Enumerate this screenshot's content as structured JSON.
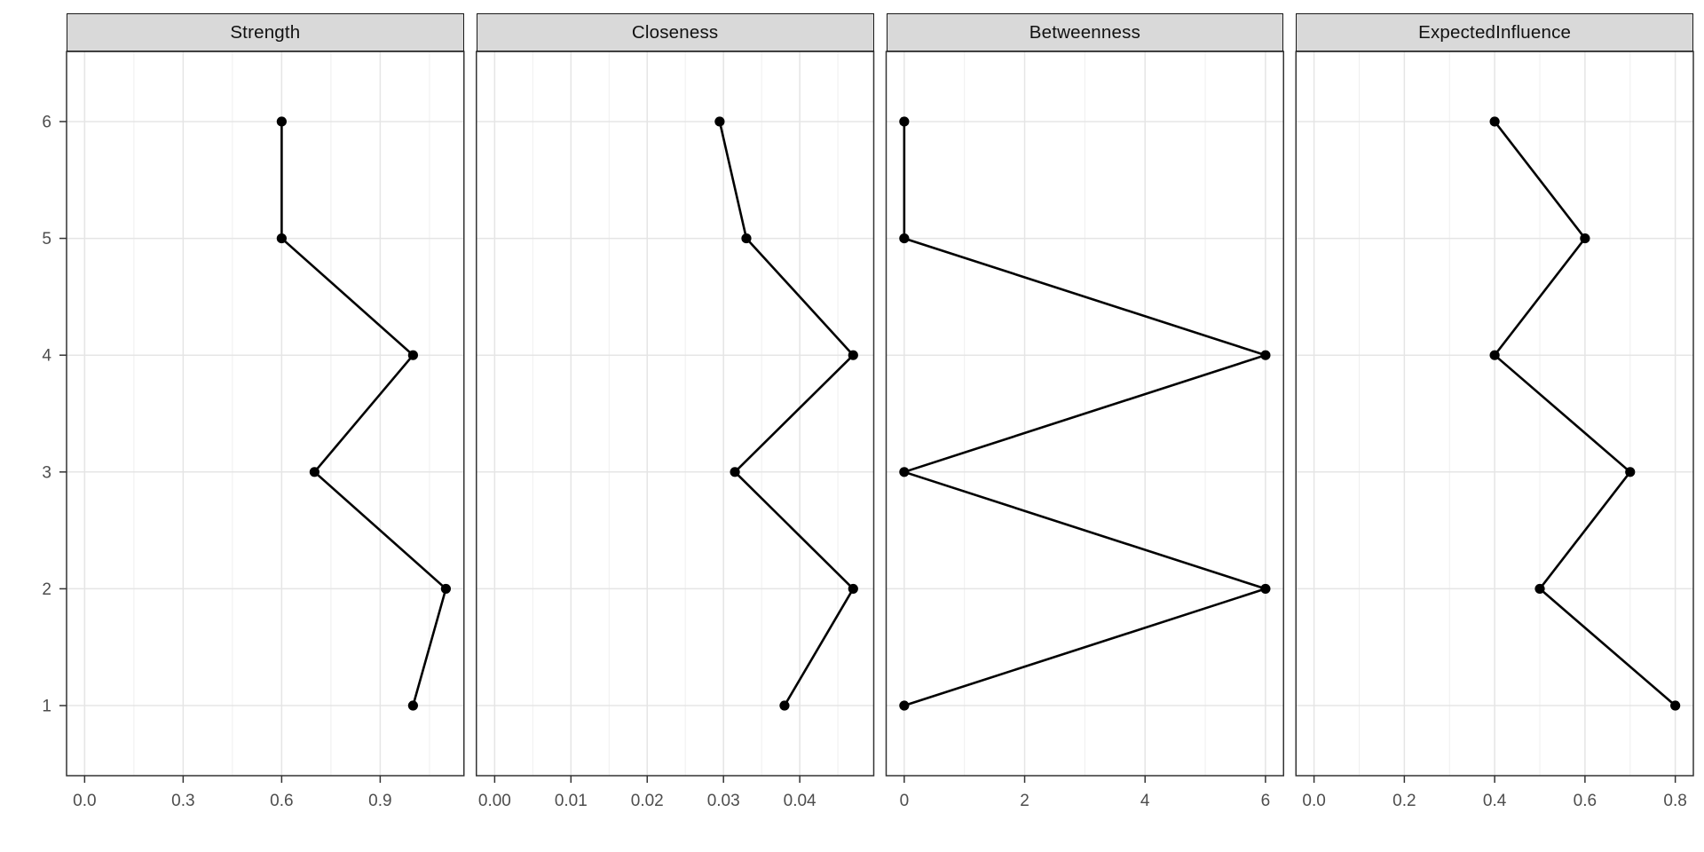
{
  "figure": {
    "background": "#ffffff",
    "colors": {
      "strip_fill": "#d9d9d9",
      "strip_border": "#1a1a1a",
      "strip_text": "#111111",
      "panel_border": "#333333",
      "grid_major": "#e5e5e5",
      "grid_minor": "#efefef",
      "axis_tick": "#333333",
      "tick_label": "#4d4d4d",
      "line": "#000000",
      "point": "#000000"
    }
  },
  "chart_data": {
    "type": "line",
    "subtype": "faceted dot-line centrality plot, one panel per measure, nodes on y-axis",
    "title": "",
    "xlabel": "",
    "ylabel": "",
    "legend": "none",
    "grid": "vertical major+minor gridlines; horizontal major gridline at each node level",
    "nodes": [
      1,
      2,
      3,
      4,
      5,
      6
    ],
    "y_axis": {
      "domain": [
        0.4,
        6.6
      ],
      "ticks": [
        {
          "value": 6,
          "label": "6"
        },
        {
          "value": 5,
          "label": "5"
        },
        {
          "value": 4,
          "label": "4"
        },
        {
          "value": 3,
          "label": "3"
        },
        {
          "value": 2,
          "label": "2"
        },
        {
          "value": 1,
          "label": "1"
        }
      ]
    },
    "panels": [
      {
        "title": "Strength",
        "x_domain": [
          -0.055,
          1.155
        ],
        "x_ticks": [
          {
            "value": 0.0,
            "label": "0.0"
          },
          {
            "value": 0.3,
            "label": "0.3"
          },
          {
            "value": 0.6,
            "label": "0.6"
          },
          {
            "value": 0.9,
            "label": "0.9"
          }
        ],
        "x_minor": [
          0.15,
          0.45,
          0.75,
          1.05
        ],
        "values_by_node": [
          1.0,
          1.1,
          0.7,
          1.0,
          0.6,
          0.6
        ]
      },
      {
        "title": "Closeness",
        "x_domain": [
          -0.0024,
          0.0497
        ],
        "x_ticks": [
          {
            "value": 0.0,
            "label": "0.00"
          },
          {
            "value": 0.01,
            "label": "0.01"
          },
          {
            "value": 0.02,
            "label": "0.02"
          },
          {
            "value": 0.03,
            "label": "0.03"
          },
          {
            "value": 0.04,
            "label": "0.04"
          }
        ],
        "x_minor": [
          0.005,
          0.015,
          0.025,
          0.035,
          0.045
        ],
        "values_by_node": [
          0.038,
          0.047,
          0.0315,
          0.047,
          0.033,
          0.0295
        ]
      },
      {
        "title": "Betweenness",
        "x_domain": [
          -0.3,
          6.3
        ],
        "x_ticks": [
          {
            "value": 0,
            "label": "0"
          },
          {
            "value": 2,
            "label": "2"
          },
          {
            "value": 4,
            "label": "4"
          },
          {
            "value": 6,
            "label": "6"
          }
        ],
        "x_minor": [
          1,
          3,
          5
        ],
        "values_by_node": [
          0,
          6,
          0,
          6,
          0,
          0
        ]
      },
      {
        "title": "ExpectedInfluence",
        "x_domain": [
          -0.04,
          0.84
        ],
        "x_ticks": [
          {
            "value": 0.0,
            "label": "0.0"
          },
          {
            "value": 0.2,
            "label": "0.2"
          },
          {
            "value": 0.4,
            "label": "0.4"
          },
          {
            "value": 0.6,
            "label": "0.6"
          },
          {
            "value": 0.8,
            "label": "0.8"
          }
        ],
        "x_minor": [
          0.1,
          0.3,
          0.5,
          0.7
        ],
        "values_by_node": [
          0.8,
          0.5,
          0.7,
          0.4,
          0.6,
          0.4
        ]
      }
    ]
  }
}
